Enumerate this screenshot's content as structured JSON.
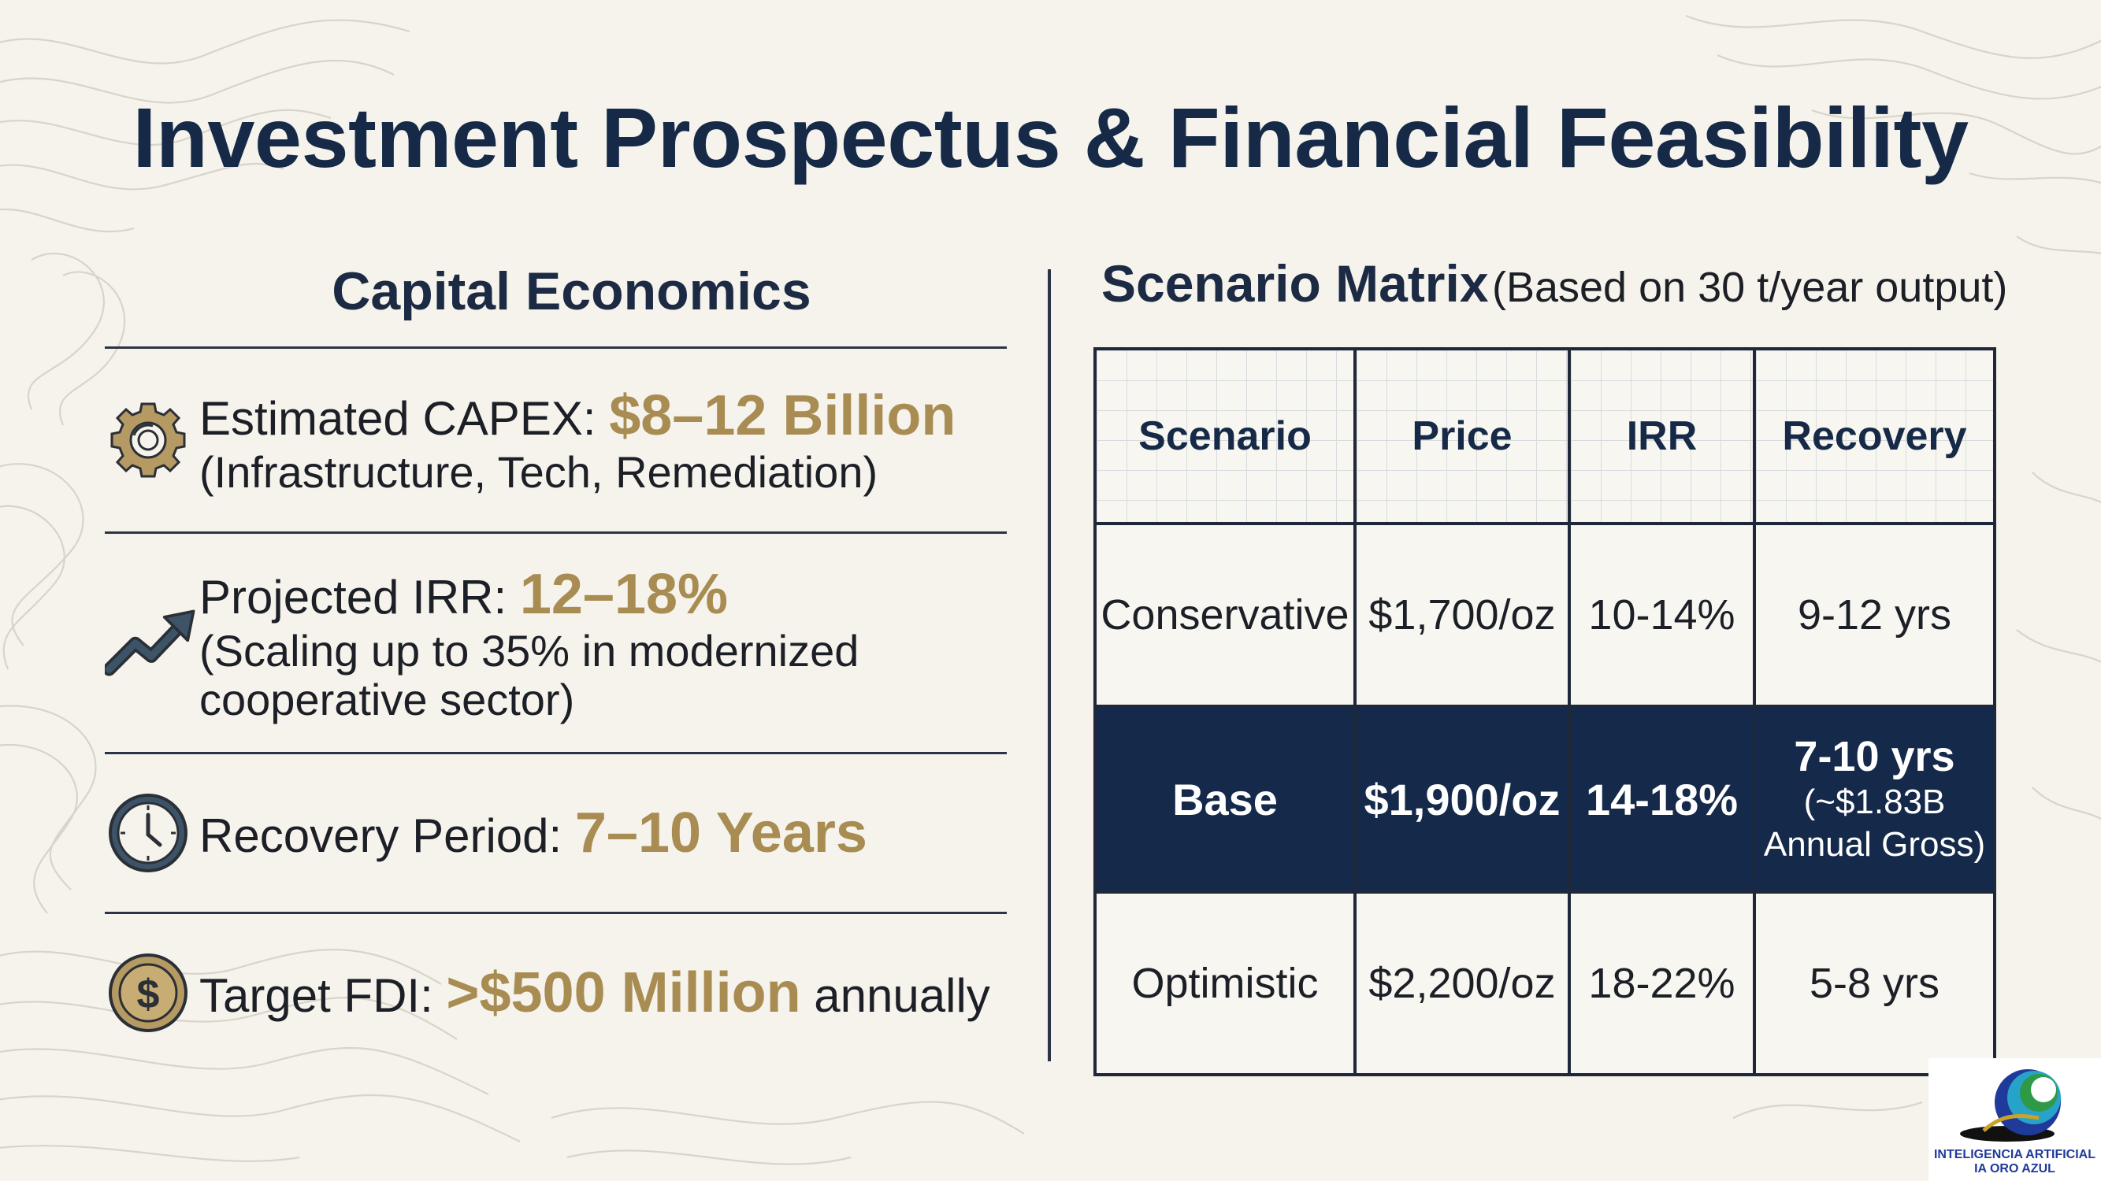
{
  "title": "Investment Prospectus & Financial Feasibility",
  "capital_economics": {
    "heading": "Capital Economics",
    "items": [
      {
        "icon": "gear-icon",
        "label": "Estimated CAPEX: ",
        "value": "$8–12 Billion",
        "sub": "(Infrastructure, Tech, Remediation)"
      },
      {
        "icon": "trend-up-arrow-icon",
        "label": "Projected IRR: ",
        "value": "12–18%",
        "sub": "(Scaling up to 35% in modernized cooperative sector)"
      },
      {
        "icon": "clock-icon",
        "label": "Recovery Period: ",
        "value": "7–10 Years",
        "sub": ""
      },
      {
        "icon": "dollar-coin-icon",
        "label": "Target FDI: ",
        "value": ">$500 Million",
        "suffix": " annually"
      }
    ]
  },
  "scenario_matrix": {
    "title": "Scenario Matrix",
    "note": "(Based on 30 t/year output)",
    "columns": [
      "Scenario",
      "Price",
      "IRR",
      "Recovery"
    ],
    "rows": [
      {
        "scenario": "Conservative",
        "price": "$1,700/oz",
        "irr": "10-14%",
        "recovery": "9-12 yrs"
      },
      {
        "scenario": "Base",
        "price": "$1,900/oz",
        "irr": "14-18%",
        "recovery": "7-10 yrs",
        "recovery_note_1": "(~$1.83B",
        "recovery_note_2": "Annual Gross)"
      },
      {
        "scenario": "Optimistic",
        "price": "$2,200/oz",
        "irr": "18-22%",
        "recovery": "5-8 yrs"
      }
    ]
  },
  "logo": {
    "line1": "INTELIGENCIA ARTIFICIAL",
    "line2": "IA ORO AZUL",
    "colors": [
      "#1f3a9a",
      "#27a3c9",
      "#2e9a48",
      "#c9a227"
    ]
  },
  "colors": {
    "navy": "#162a48",
    "gold": "#a88c52",
    "background": "#f5f3ec"
  }
}
